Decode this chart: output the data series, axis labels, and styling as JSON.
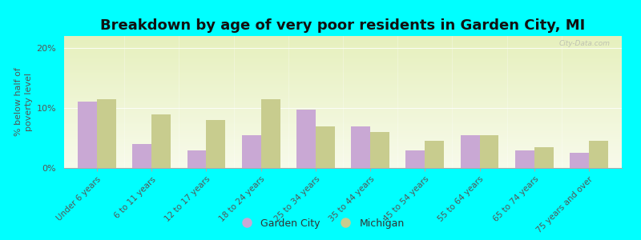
{
  "title": "Breakdown by age of very poor residents in Garden City, MI",
  "ylabel": "% below half of\npoverty level",
  "categories": [
    "Under 6 years",
    "6 to 11 years",
    "12 to 17 years",
    "18 to 24 years",
    "25 to 34 years",
    "35 to 44 years",
    "45 to 54 years",
    "55 to 64 years",
    "65 to 74 years",
    "75 years and over"
  ],
  "garden_city_values": [
    11.0,
    4.0,
    3.0,
    5.5,
    9.7,
    7.0,
    3.0,
    5.5,
    3.0,
    2.5
  ],
  "michigan_values": [
    11.5,
    9.0,
    8.0,
    11.5,
    7.0,
    6.0,
    4.5,
    5.5,
    3.5,
    4.5
  ],
  "garden_city_color": "#c9a8d4",
  "michigan_color": "#c8cc8e",
  "background_color": "#00ffff",
  "ylim": [
    0,
    22
  ],
  "yticks": [
    0,
    10,
    20
  ],
  "ytick_labels": [
    "0%",
    "10%",
    "20%"
  ],
  "title_fontsize": 13,
  "axis_label_fontsize": 8,
  "tick_fontsize": 7.5,
  "legend_label_gc": "Garden City",
  "legend_label_mi": "Michigan",
  "watermark": "City-Data.com"
}
